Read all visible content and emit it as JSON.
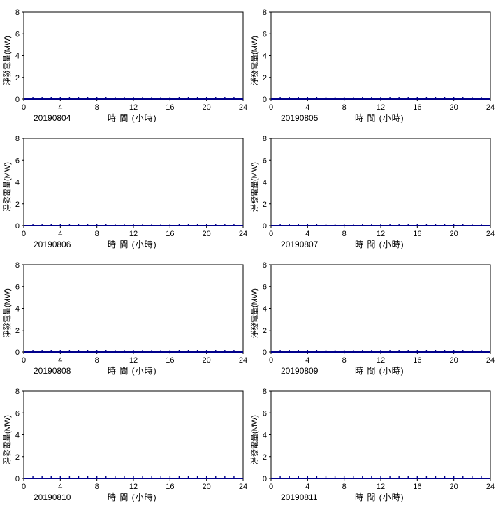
{
  "charts_common": {
    "xlabel": "時 間 (小時)",
    "ylabel": "淨發電量(MW)",
    "xlim": [
      0,
      24
    ],
    "ylim": [
      0,
      8
    ],
    "xticks": [
      0,
      4,
      8,
      12,
      16,
      20,
      24
    ],
    "yticks": [
      0,
      2,
      4,
      6,
      8
    ],
    "line_color": "#00008b"
  },
  "chart_data": [
    {
      "type": "line",
      "date": "20190804",
      "xlabel": "時 間 (小時)",
      "ylabel": "淨發電量(MW)",
      "xlim": [
        0,
        24
      ],
      "ylim": [
        0,
        8
      ],
      "x": [
        0,
        1,
        2,
        3,
        4,
        5,
        6,
        7,
        8,
        9,
        10,
        11,
        12,
        13,
        14,
        15,
        16,
        17,
        18,
        19,
        20,
        21,
        22,
        23,
        24
      ],
      "y": [
        0,
        0,
        0,
        0,
        0,
        0,
        0,
        0,
        0,
        0,
        0,
        0,
        0,
        0,
        0,
        0,
        0,
        0,
        0,
        0,
        0,
        0,
        0,
        0,
        0
      ]
    },
    {
      "type": "line",
      "date": "20190805",
      "xlabel": "時 間 (小時)",
      "ylabel": "淨發電量(MW)",
      "xlim": [
        0,
        24
      ],
      "ylim": [
        0,
        8
      ],
      "x": [
        0,
        1,
        2,
        3,
        4,
        5,
        6,
        7,
        8,
        9,
        10,
        11,
        12,
        13,
        14,
        15,
        16,
        17,
        18,
        19,
        20,
        21,
        22,
        23,
        24
      ],
      "y": [
        0,
        0,
        0,
        0,
        0,
        0,
        0,
        0,
        0,
        0,
        0,
        0,
        0,
        0,
        0,
        0,
        0,
        0,
        0,
        0,
        0,
        0,
        0,
        0,
        0
      ]
    },
    {
      "type": "line",
      "date": "20190806",
      "xlabel": "時 間 (小時)",
      "ylabel": "淨發電量(MW)",
      "xlim": [
        0,
        24
      ],
      "ylim": [
        0,
        8
      ],
      "x": [
        0,
        1,
        2,
        3,
        4,
        5,
        6,
        7,
        8,
        9,
        10,
        11,
        12,
        13,
        14,
        15,
        16,
        17,
        18,
        19,
        20,
        21,
        22,
        23,
        24
      ],
      "y": [
        0,
        0,
        0,
        0,
        0,
        0,
        0,
        0,
        0,
        0,
        0,
        0,
        0,
        0,
        0,
        0,
        0,
        0,
        0,
        0,
        0,
        0,
        0,
        0,
        0
      ]
    },
    {
      "type": "line",
      "date": "20190807",
      "xlabel": "時 間 (小時)",
      "ylabel": "淨發電量(MW)",
      "xlim": [
        0,
        24
      ],
      "ylim": [
        0,
        8
      ],
      "x": [
        0,
        1,
        2,
        3,
        4,
        5,
        6,
        7,
        8,
        9,
        10,
        11,
        12,
        13,
        14,
        15,
        16,
        17,
        18,
        19,
        20,
        21,
        22,
        23,
        24
      ],
      "y": [
        0,
        0,
        0,
        0,
        0,
        0,
        0,
        0,
        0,
        0,
        0,
        0,
        0,
        0,
        0,
        0,
        0,
        0,
        0,
        0,
        0,
        0,
        0,
        0,
        0
      ]
    },
    {
      "type": "line",
      "date": "20190808",
      "xlabel": "時 間 (小時)",
      "ylabel": "淨發電量(MW)",
      "xlim": [
        0,
        24
      ],
      "ylim": [
        0,
        8
      ],
      "x": [
        0,
        1,
        2,
        3,
        4,
        5,
        6,
        7,
        8,
        9,
        10,
        11,
        12,
        13,
        14,
        15,
        16,
        17,
        18,
        19,
        20,
        21,
        22,
        23,
        24
      ],
      "y": [
        0,
        0,
        0,
        0,
        0,
        0,
        0,
        0,
        0,
        0,
        0,
        0,
        0,
        0,
        0,
        0,
        0,
        0,
        0,
        0,
        0,
        0,
        0,
        0,
        0
      ]
    },
    {
      "type": "line",
      "date": "20190809",
      "xlabel": "時 間 (小時)",
      "ylabel": "淨發電量(MW)",
      "xlim": [
        0,
        24
      ],
      "ylim": [
        0,
        8
      ],
      "x": [
        0,
        1,
        2,
        3,
        4,
        5,
        6,
        7,
        8,
        9,
        10,
        11,
        12,
        13,
        14,
        15,
        16,
        17,
        18,
        19,
        20,
        21,
        22,
        23,
        24
      ],
      "y": [
        0,
        0,
        0,
        0,
        0,
        0,
        0,
        0,
        0,
        0,
        0,
        0,
        0,
        0,
        0,
        0,
        0,
        0,
        0,
        0,
        0,
        0,
        0,
        0,
        0
      ]
    },
    {
      "type": "line",
      "date": "20190810",
      "xlabel": "時 間 (小時)",
      "ylabel": "淨發電量(MW)",
      "xlim": [
        0,
        24
      ],
      "ylim": [
        0,
        8
      ],
      "x": [
        0,
        1,
        2,
        3,
        4,
        5,
        6,
        7,
        8,
        9,
        10,
        11,
        12,
        13,
        14,
        15,
        16,
        17,
        18,
        19,
        20,
        21,
        22,
        23,
        24
      ],
      "y": [
        0,
        0,
        0,
        0,
        0,
        0,
        0,
        0,
        0,
        0,
        0,
        0,
        0,
        0,
        0,
        0,
        0,
        0,
        0,
        0,
        0,
        0,
        0,
        0,
        0
      ]
    },
    {
      "type": "line",
      "date": "20190811",
      "xlabel": "時 間 (小時)",
      "ylabel": "淨發電量(MW)",
      "xlim": [
        0,
        24
      ],
      "ylim": [
        0,
        8
      ],
      "x": [
        0,
        1,
        2,
        3,
        4,
        5,
        6,
        7,
        8,
        9,
        10,
        11,
        12,
        13,
        14,
        15,
        16,
        17,
        18,
        19,
        20,
        21,
        22,
        23,
        24
      ],
      "y": [
        0,
        0,
        0,
        0,
        0,
        0,
        0,
        0,
        0,
        0,
        0,
        0,
        0,
        0,
        0,
        0,
        0,
        0,
        0,
        0,
        0,
        0,
        0,
        0,
        0
      ]
    }
  ]
}
